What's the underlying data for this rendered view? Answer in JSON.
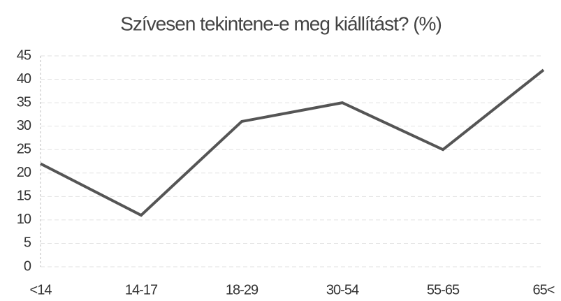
{
  "chart_data": {
    "type": "line",
    "title": "Szívesen tekintene-e meg kiállítást? (%)",
    "categories": [
      "<14",
      "14-17",
      "18-29",
      "30-54",
      "55-65",
      "65<"
    ],
    "values": [
      22,
      11,
      31,
      35,
      25,
      42
    ],
    "color": "#555555",
    "ylim": [
      0,
      45
    ],
    "yticks": [
      0,
      5,
      10,
      15,
      20,
      25,
      30,
      35,
      40,
      45
    ],
    "grid": true
  }
}
